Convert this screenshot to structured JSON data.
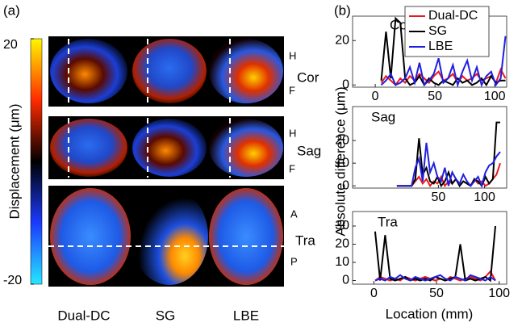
{
  "panel_a": {
    "label": "(a)",
    "colorbar": {
      "label": "Displacement (μm)",
      "lim": [
        -20,
        20
      ],
      "ticks": [
        -20,
        20
      ]
    },
    "columns": [
      "Dual-DC",
      "SG",
      "LBE"
    ],
    "rows": [
      {
        "name": "Cor",
        "marks": [
          "H",
          "F"
        ]
      },
      {
        "name": "Sag",
        "marks": [
          "H",
          "F"
        ]
      },
      {
        "name": "Tra",
        "marks": [
          "A",
          "P"
        ]
      }
    ]
  },
  "panel_b": {
    "label": "(b)"
  },
  "chart_data": [
    {
      "type": "line",
      "title": "Cor",
      "x": [
        5,
        9,
        13,
        17,
        21,
        25,
        29,
        33,
        37,
        41,
        45,
        49,
        53,
        57,
        61,
        65,
        69,
        73,
        77,
        81,
        85,
        89,
        93,
        97,
        101,
        105,
        109
      ],
      "series": [
        {
          "name": "Dual-DC",
          "color": "#e8191e",
          "values": [
            1,
            4,
            2,
            0,
            3,
            1,
            4,
            2,
            5,
            3,
            1,
            4,
            6,
            2,
            3,
            5,
            1,
            4,
            2,
            3,
            5,
            2,
            3,
            4,
            1,
            7,
            3
          ]
        },
        {
          "name": "SG",
          "color": "#000000",
          "values": [
            2,
            24,
            3,
            30,
            28,
            3,
            0,
            1,
            4,
            0,
            3,
            1,
            0,
            2,
            1,
            0,
            3,
            1,
            2,
            0,
            1,
            3,
            0,
            4,
            1,
            2,
            2
          ]
        },
        {
          "name": "LBE",
          "color": "#1f1fe0",
          "values": [
            0,
            2,
            5,
            0,
            1,
            3,
            8,
            1,
            10,
            0,
            2,
            5,
            12,
            1,
            3,
            9,
            0,
            6,
            11,
            2,
            8,
            0,
            4,
            6,
            0,
            3,
            22
          ]
        }
      ],
      "xlim": [
        -19,
        110
      ],
      "xticks": [
        0,
        50,
        100
      ],
      "ylim": [
        -1,
        31
      ],
      "yticks": [
        0,
        20
      ]
    },
    {
      "type": "line",
      "title": "Sag",
      "ylabel": "Absolute difference (μm)",
      "x": [
        5,
        9,
        13,
        17,
        21,
        25,
        29,
        33,
        37,
        41,
        45,
        49,
        53,
        57,
        61,
        65,
        69,
        73,
        77,
        81,
        85,
        89,
        93,
        97,
        101,
        105,
        109,
        113,
        117
      ],
      "series": [
        {
          "color": "#e8191e",
          "values": [
            0,
            0,
            0,
            0,
            0,
            2,
            4,
            1,
            3,
            0,
            2,
            1,
            4,
            0,
            2,
            1,
            3,
            0,
            2,
            1,
            0,
            3,
            1,
            2,
            0,
            1,
            3,
            5,
            10
          ]
        },
        {
          "color": "#000000",
          "values": [
            0,
            0,
            0,
            0,
            0,
            3,
            21,
            5,
            8,
            2,
            1,
            4,
            0,
            2,
            6,
            1,
            3,
            0,
            2,
            1,
            0,
            3,
            2,
            0,
            4,
            1,
            3,
            28,
            28
          ]
        },
        {
          "color": "#1f1fe0",
          "values": [
            0,
            0,
            0,
            0,
            0,
            8,
            12,
            2,
            19,
            6,
            10,
            4,
            2,
            8,
            0,
            6,
            3,
            1,
            5,
            2,
            0,
            2,
            4,
            0,
            6,
            9,
            10,
            13,
            15
          ]
        }
      ],
      "xlim": [
        -43,
        124
      ],
      "xticks": [
        50,
        100
      ],
      "ylim": [
        -1,
        35
      ],
      "yticks": [
        0,
        10,
        20
      ]
    },
    {
      "type": "line",
      "title": "Tra",
      "xlabel": "Location (mm)",
      "x": [
        1,
        5,
        9,
        13,
        17,
        21,
        25,
        29,
        33,
        37,
        41,
        45,
        49,
        53,
        57,
        61,
        65,
        69,
        73,
        77,
        81,
        85,
        89,
        93,
        97
      ],
      "series": [
        {
          "color": "#e8191e",
          "values": [
            0,
            2,
            1,
            0,
            1,
            0,
            2,
            1,
            0,
            1,
            2,
            1,
            0,
            1,
            0,
            2,
            1,
            0,
            1,
            2,
            1,
            0,
            2,
            5,
            0
          ]
        },
        {
          "color": "#000000",
          "values": [
            27,
            0,
            25,
            1,
            0,
            1,
            2,
            0,
            1,
            0,
            1,
            0,
            2,
            1,
            0,
            1,
            2,
            20,
            0,
            1,
            0,
            1,
            2,
            0,
            30
          ]
        },
        {
          "color": "#1f1fe0",
          "values": [
            0,
            1,
            0,
            2,
            1,
            3,
            1,
            0,
            2,
            1,
            0,
            1,
            2,
            3,
            1,
            0,
            2,
            1,
            0,
            3,
            2,
            1,
            0,
            2,
            0
          ]
        }
      ],
      "xlim": [
        -17,
        106
      ],
      "xticks": [
        0,
        50,
        100
      ],
      "ylim": [
        -2,
        38
      ],
      "yticks": [
        0,
        10,
        20,
        30
      ]
    }
  ]
}
